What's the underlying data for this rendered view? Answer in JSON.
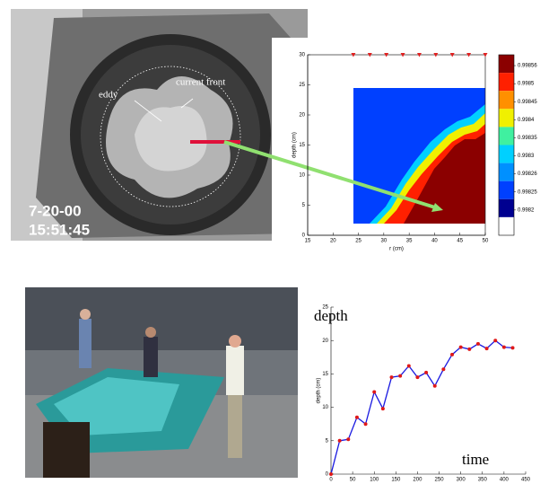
{
  "photo_top": {
    "labels": [
      "eddy",
      "current front"
    ],
    "timestamp": [
      "7-20-00",
      "15:51:45"
    ]
  },
  "chart_data": [
    {
      "type": "contour",
      "xlabel": "r (cm)",
      "ylabel": "depth (cm)",
      "xlim": [
        15,
        50
      ],
      "ylim": [
        0,
        30
      ],
      "xticks": [
        15,
        20,
        25,
        30,
        35,
        40,
        45,
        50
      ],
      "yticks": [
        0,
        5,
        10,
        15,
        20,
        25,
        30
      ],
      "stations_x": [
        24,
        27.25,
        30.5,
        33.75,
        37,
        40.25,
        43.5,
        46.75,
        50
      ],
      "station_color": "#e02020",
      "colorbar": {
        "ticks": [
          0.99856,
          0.9985,
          0.99845,
          0.9984,
          0.99835,
          0.9983,
          0.99826,
          0.99825,
          0.9982
        ],
        "colors": [
          "#8b0000",
          "#ff2000",
          "#ff9000",
          "#f0f000",
          "#40f0a0",
          "#00d0ff",
          "#0090ff",
          "#0040ff",
          "#000090",
          "#ffffff"
        ]
      }
    },
    {
      "type": "line",
      "label_y": "depth",
      "label_x": "time",
      "ylabel": "depth (cm)",
      "x": [
        0,
        20,
        40,
        60,
        80,
        100,
        120,
        140,
        160,
        180,
        200,
        220,
        240,
        260,
        280,
        300,
        320,
        340,
        360,
        380,
        400,
        420
      ],
      "values": [
        0,
        5,
        5.2,
        8.5,
        7.5,
        12.3,
        9.8,
        14.5,
        14.7,
        16.2,
        14.5,
        15.2,
        13.2,
        15.7,
        17.9,
        19,
        18.7,
        19.5,
        18.8,
        20,
        19,
        18.9
      ],
      "color": "#1818e0",
      "marker_color": "#e01818",
      "xlim": [
        0,
        450
      ],
      "ylim": [
        0,
        25
      ],
      "xticks": [
        0,
        50,
        100,
        150,
        200,
        250,
        300,
        350,
        400,
        450
      ],
      "yticks": [
        0,
        5,
        10,
        15,
        20,
        25
      ]
    }
  ]
}
